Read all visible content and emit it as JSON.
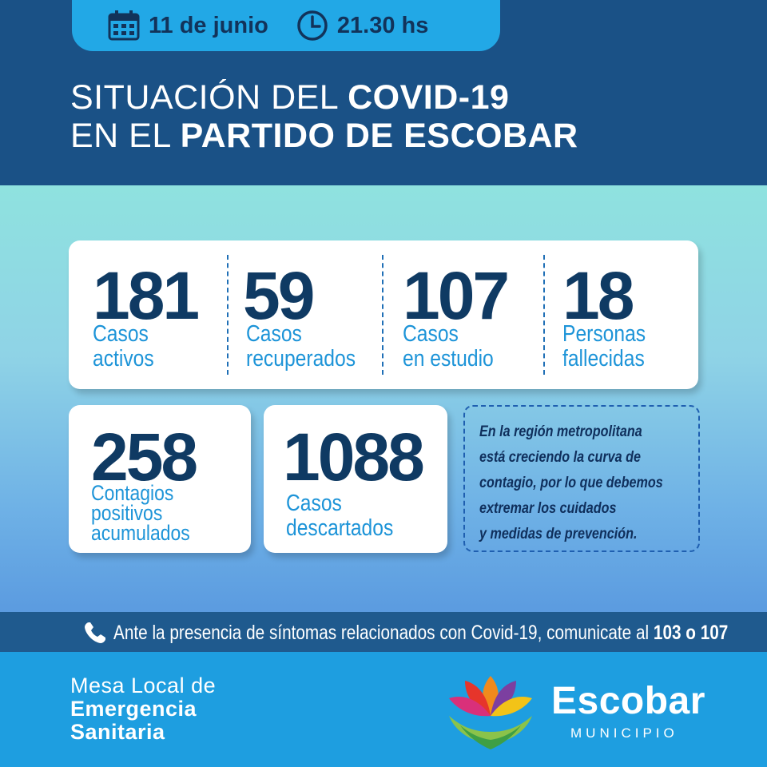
{
  "header": {
    "date": "11 de junio",
    "time": "21.30 hs",
    "title_line1_light": "SITUACIÓN DEL ",
    "title_line1_bold": "COVID-19",
    "title_line2_light": "EN EL ",
    "title_line2_bold": "PARTIDO DE ESCOBAR"
  },
  "stats": [
    {
      "value": "181",
      "label_line1": "Casos",
      "label_line2": "activos"
    },
    {
      "value": "59",
      "label_line1": "Casos",
      "label_line2": "recuperados"
    },
    {
      "value": "107",
      "label_line1": "Casos",
      "label_line2": "en estudio"
    },
    {
      "value": "18",
      "label_line1": "Personas",
      "label_line2": "fallecidas"
    }
  ],
  "contagios": {
    "value": "258",
    "label_line1": "Contagios",
    "label_line2": "positivos",
    "label_line3": "acumulados"
  },
  "descartados": {
    "value": "1088",
    "label_line1": "Casos",
    "label_line2": "descartados"
  },
  "note": {
    "line1": "En la región metropolitana",
    "line2": "está creciendo la curva de",
    "line3": "contagio, por lo que debemos",
    "line4": "extremar los cuidados",
    "line5": "y medidas de prevención."
  },
  "phone_bar": {
    "text": "Ante la presencia de síntomas relacionados con Covid-19, comunicate al ",
    "numbers": "103 o 107"
  },
  "footer": {
    "mesa_line1": "Mesa Local de",
    "mesa_line2": "Emergencia",
    "mesa_line3": "Sanitaria",
    "brand": "Escobar",
    "brand_sub": "MUNICIPIO"
  },
  "icons": {
    "date": "calendar-icon",
    "time": "clock-icon",
    "phone": "phone-icon",
    "logo": "flower-hand-logo"
  },
  "colors": {
    "navy": "#1a5186",
    "accent": "#22a8e6",
    "stat_number": "#0f3a63",
    "stat_label": "#1d94d8",
    "footer": "#1e9ee0"
  }
}
